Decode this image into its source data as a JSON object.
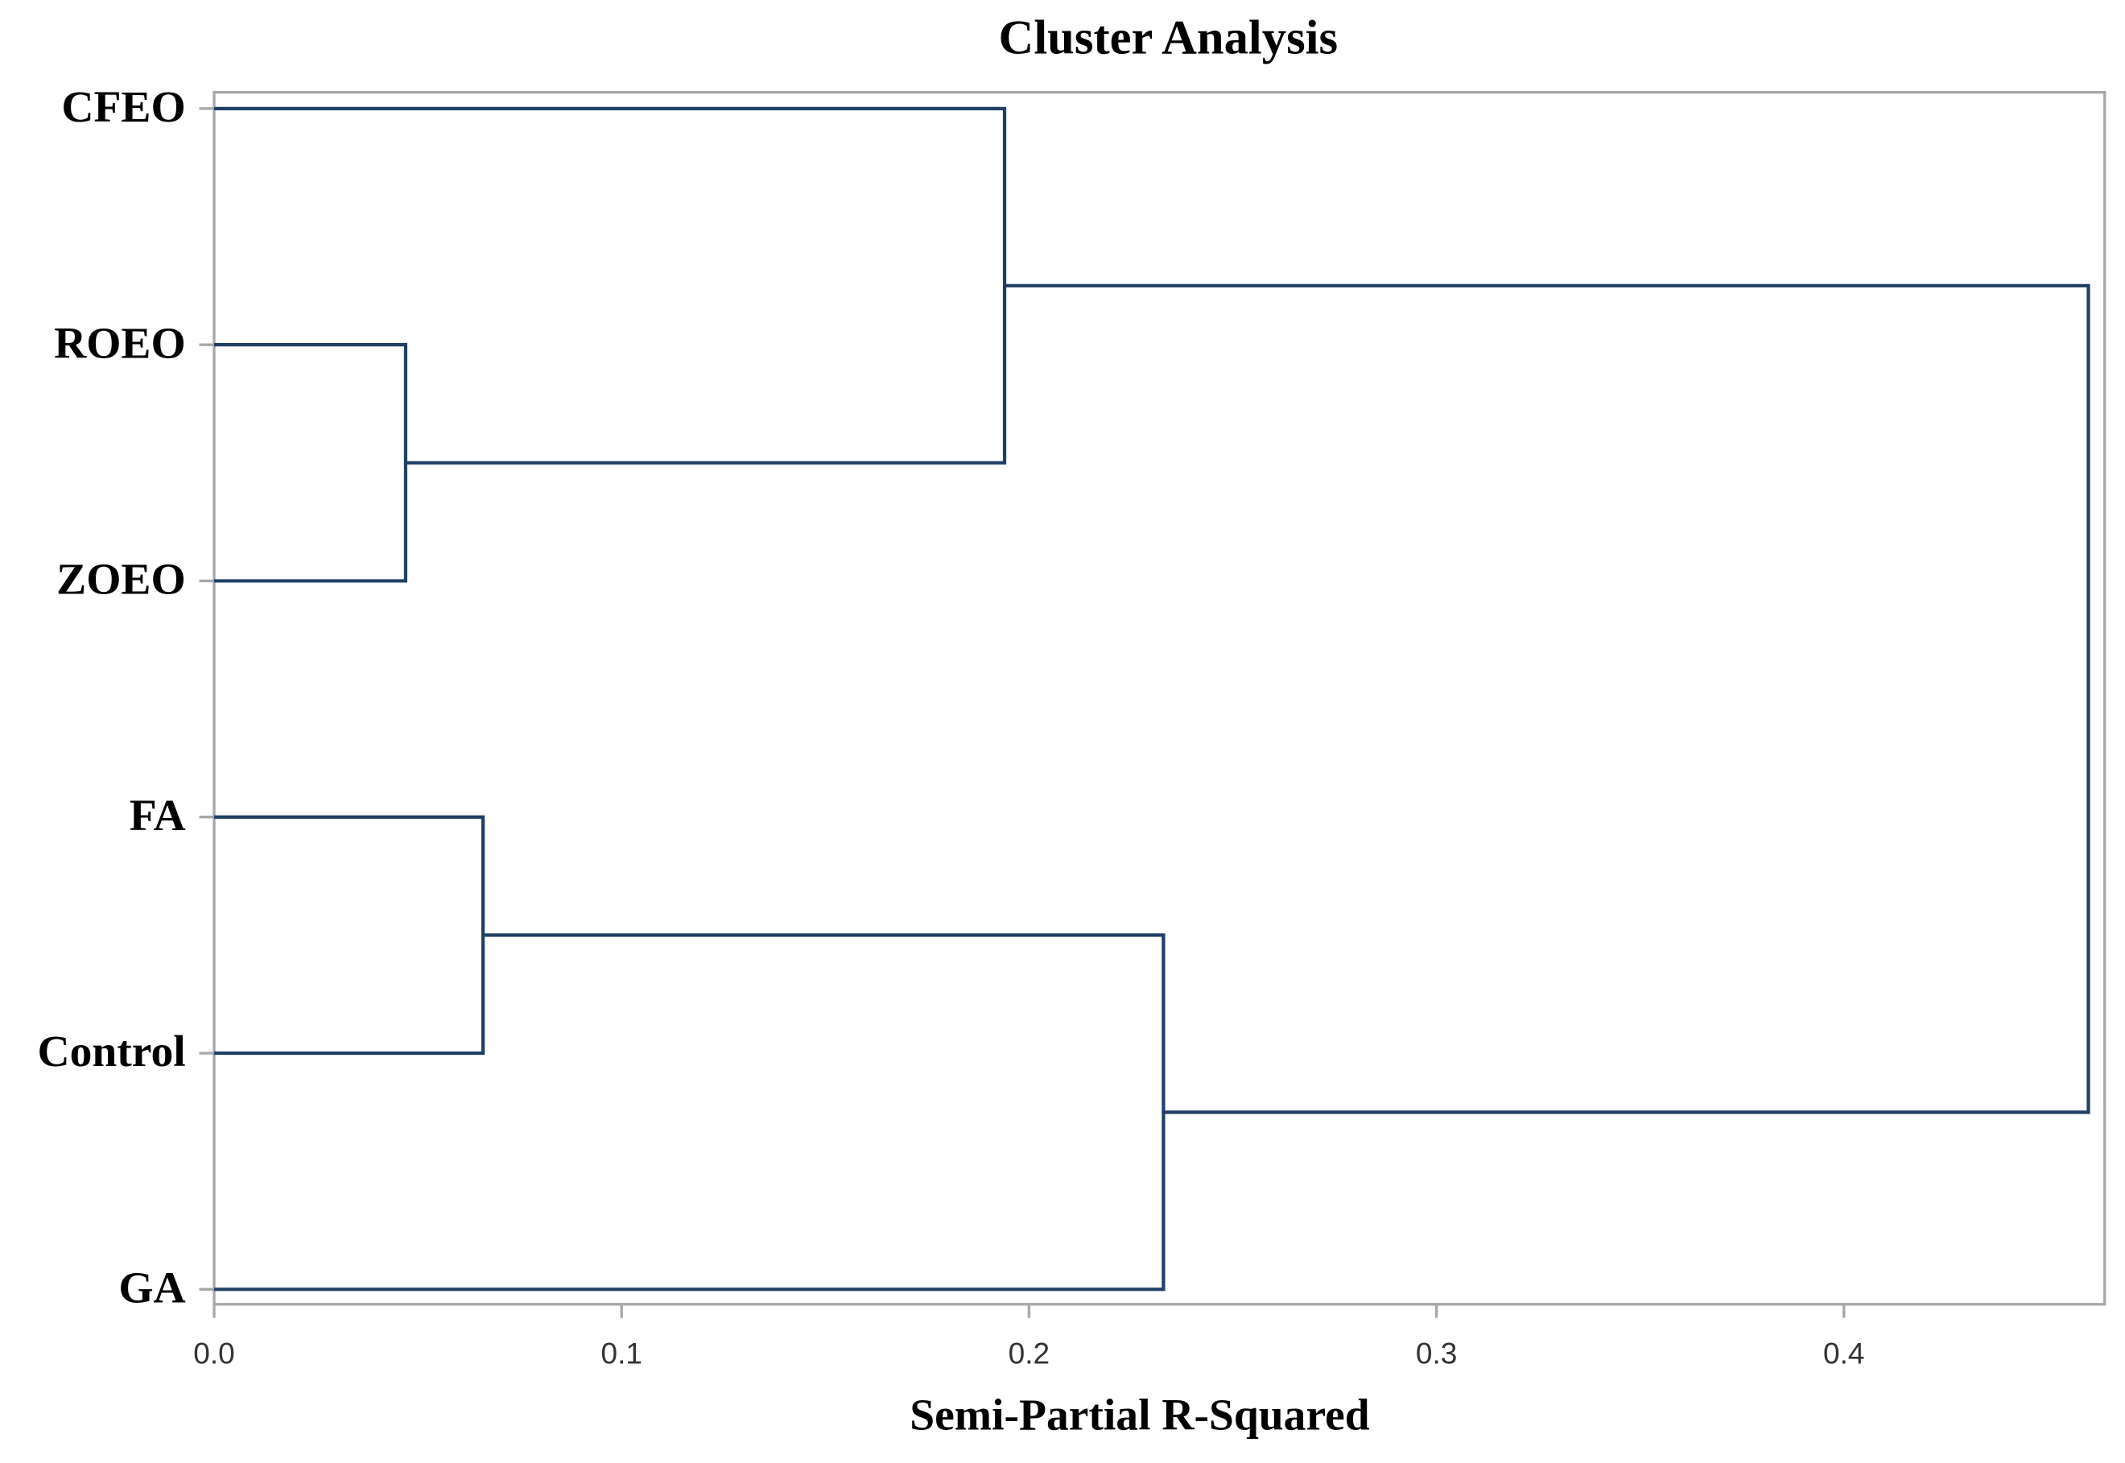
{
  "chart_data": {
    "type": "dendrogram",
    "title": "Cluster Analysis",
    "x_label": "Semi-Partial R-Squared",
    "xlim": [
      0,
      0.464
    ],
    "xticks": [
      {
        "value": 0,
        "label": "0.0"
      },
      0.1,
      0.2,
      0.3,
      0.4
    ],
    "color": "#1f3f66",
    "tree": {
      "height": 0.46,
      "children": [
        {
          "height": 0.194,
          "children": [
            {
              "label": "CFEO"
            },
            {
              "height": 0.047,
              "children": [
                {
                  "label": "ROEO"
                },
                {
                  "label": "ZOEO"
                }
              ]
            }
          ]
        },
        {
          "height": 0.233,
          "children": [
            {
              "height": 0.066,
              "children": [
                {
                  "label": "FA"
                },
                {
                  "label": "Control"
                }
              ]
            },
            {
              "label": "GA"
            }
          ]
        }
      ]
    }
  }
}
